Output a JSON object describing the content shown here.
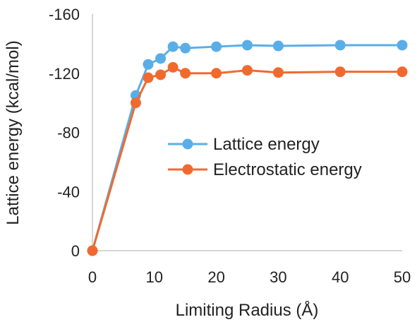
{
  "chart_data": {
    "type": "line",
    "xlabel": "Limiting Radius (Å)",
    "ylabel": "Lattice energy (kcal/mol)",
    "xlim": [
      0,
      50
    ],
    "ylim": [
      0,
      -160
    ],
    "x_ticks": [
      0,
      10,
      20,
      30,
      40,
      50
    ],
    "y_ticks": [
      0,
      -40,
      -80,
      -120,
      -160
    ],
    "x_tick_labels": [
      "0",
      "10",
      "20",
      "30",
      "40",
      "50"
    ],
    "y_tick_labels": [
      "0",
      "-40",
      "-80",
      "-120",
      "-160"
    ],
    "grid": false,
    "legend_position": "center-right",
    "series": [
      {
        "name": "Lattice energy",
        "color": "#5aaee8",
        "x": [
          0,
          7,
          9,
          11,
          13,
          15,
          20,
          25,
          30,
          40,
          50
        ],
        "y": [
          0,
          -105,
          -126,
          -130,
          -138,
          -137,
          -138,
          -139,
          -138.5,
          -139,
          -139
        ]
      },
      {
        "name": "Electrostatic energy",
        "color": "#f06a2f",
        "x": [
          0,
          7,
          9,
          11,
          13,
          15,
          20,
          25,
          30,
          40,
          50
        ],
        "y": [
          0,
          -100,
          -117,
          -119,
          -124,
          -120,
          -120,
          -122,
          -120.5,
          -121,
          -121
        ]
      }
    ]
  }
}
